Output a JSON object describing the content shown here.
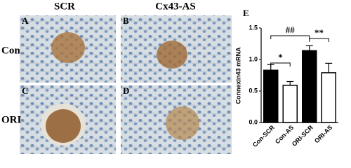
{
  "figure": {
    "column_headers": [
      "SCR",
      "Cx43-AS"
    ],
    "row_labels": [
      "Con",
      "ORI"
    ],
    "panel_labels": [
      "A",
      "B",
      "C",
      "D"
    ]
  },
  "chart_data": {
    "type": "bar",
    "panel_label": "E",
    "y_label": "Connexin43 mRNA",
    "categories": [
      "Con-SCR",
      "Con-AS",
      "ORI-SCR",
      "ORI-AS"
    ],
    "values": [
      0.83,
      0.59,
      1.14,
      0.79
    ],
    "errors": [
      0.09,
      0.06,
      0.08,
      0.15
    ],
    "colors": [
      "#000000",
      "#ffffff",
      "#000000",
      "#ffffff"
    ],
    "ylim": [
      0,
      1.5
    ],
    "yticks": [
      {
        "value": 0,
        "label": "0.0"
      },
      {
        "value": 0.5,
        "label": "0.5"
      },
      {
        "value": 1,
        "label": "1.0"
      },
      {
        "value": 1.5,
        "label": "1.5"
      }
    ],
    "annotations": [
      "*",
      "##",
      "**"
    ]
  }
}
